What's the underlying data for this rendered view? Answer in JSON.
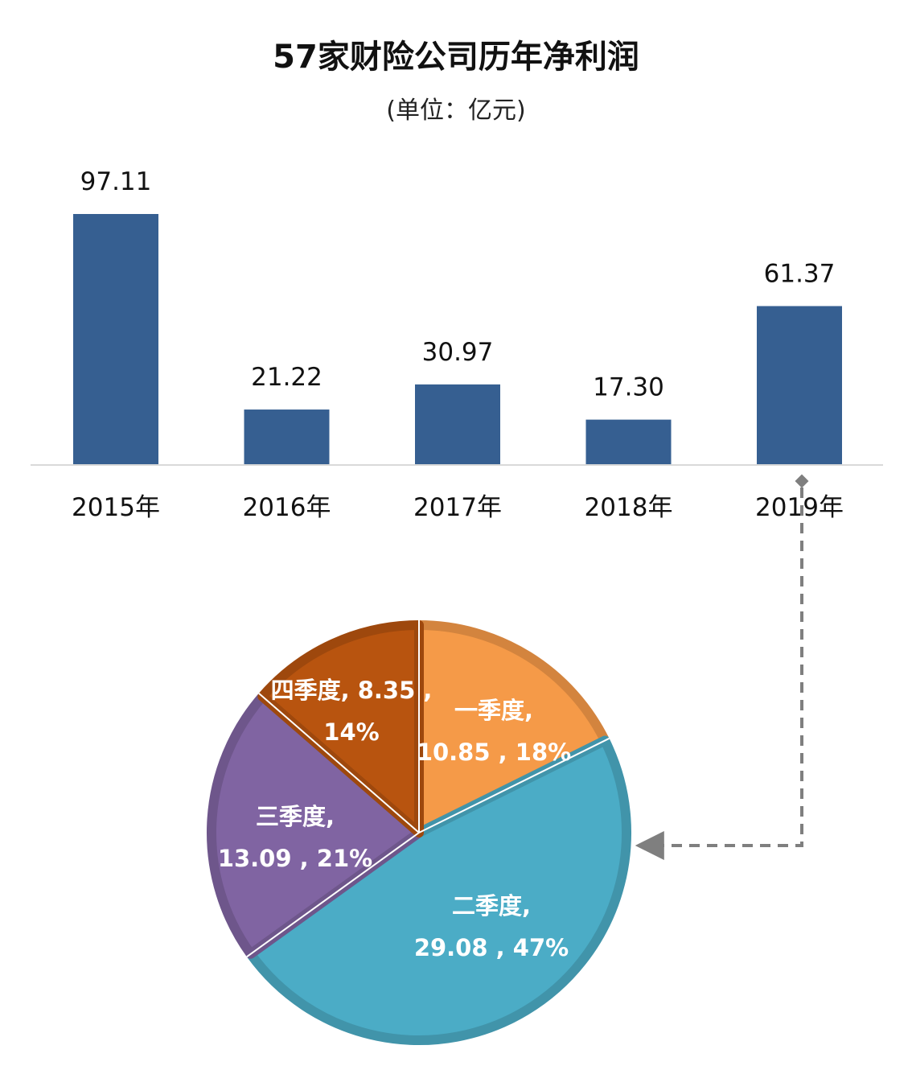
{
  "header": {
    "title": "57家财险公司历年净利润",
    "subtitle": "(单位：亿元)"
  },
  "chart_data": [
    {
      "type": "bar",
      "title": "57家财险公司历年净利润",
      "subtitle": "(单位：亿元)",
      "categories": [
        "2015年",
        "2016年",
        "2017年",
        "2018年",
        "2019年"
      ],
      "values": [
        97.11,
        21.22,
        30.97,
        17.3,
        61.37
      ],
      "value_labels": [
        "97.11",
        "21.22",
        "30.97",
        "17.30",
        "61.37"
      ],
      "color": "#365F91",
      "grid": false,
      "ylim": [
        0,
        97.11
      ]
    },
    {
      "type": "pie",
      "slices": [
        {
          "label": "一季度,",
          "value": 10.85,
          "value_label": "10.85",
          "percent_label": "18%",
          "color": "#F59A48"
        },
        {
          "label": "二季度,",
          "value": 29.08,
          "value_label": "29.08",
          "percent_label": "47%",
          "color": "#4BACC6"
        },
        {
          "label": "三季度,",
          "value": 13.09,
          "value_label": "13.09",
          "percent_label": "21%",
          "color": "#8064A2"
        },
        {
          "label": "四季度,",
          "value": 8.35,
          "value_label": "8.35",
          "percent_label": "14%",
          "color": "#B8540F"
        }
      ]
    }
  ]
}
